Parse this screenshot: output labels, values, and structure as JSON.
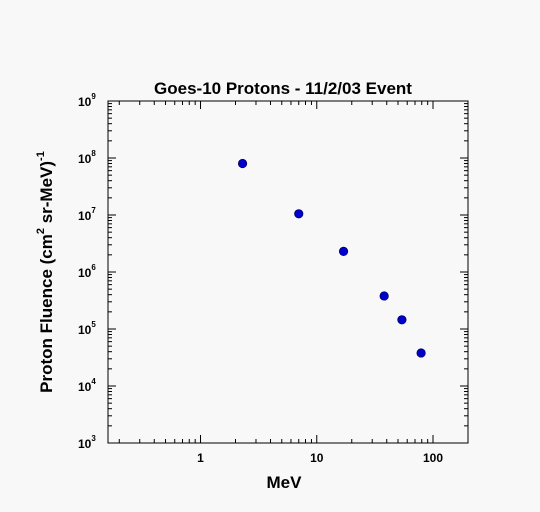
{
  "chart_data": {
    "type": "scatter",
    "title": "Goes-10 Protons - 11/2/03 Event",
    "xlabel": "MeV",
    "ylabel": {
      "main": "Proton Fluence (cm",
      "sup1": "2",
      "middle": " sr-MeV)",
      "sup2": "-1"
    },
    "xscale": "log",
    "yscale": "log",
    "xlim": [
      0.16,
      200
    ],
    "ylim": [
      1000,
      1000000000
    ],
    "x_tick_labels": [
      {
        "value": 1,
        "label": "1"
      },
      {
        "value": 10,
        "label": "10"
      },
      {
        "value": 100,
        "label": "100"
      }
    ],
    "y_tick_labels": [
      {
        "value": 1000,
        "base": "10",
        "exp": "3"
      },
      {
        "value": 10000,
        "base": "10",
        "exp": "4"
      },
      {
        "value": 100000,
        "base": "10",
        "exp": "5"
      },
      {
        "value": 1000000,
        "base": "10",
        "exp": "6"
      },
      {
        "value": 10000000,
        "base": "10",
        "exp": "7"
      },
      {
        "value": 100000000,
        "base": "10",
        "exp": "8"
      },
      {
        "value": 1000000000,
        "base": "10",
        "exp": "9"
      }
    ],
    "grid": false,
    "marker_color": "#0000cc",
    "points": [
      {
        "x": 2.3,
        "y": 80000000
      },
      {
        "x": 7.0,
        "y": 10500000
      },
      {
        "x": 17.0,
        "y": 2300000
      },
      {
        "x": 38.0,
        "y": 380000
      },
      {
        "x": 54.0,
        "y": 145000
      },
      {
        "x": 79.0,
        "y": 38000
      }
    ]
  }
}
